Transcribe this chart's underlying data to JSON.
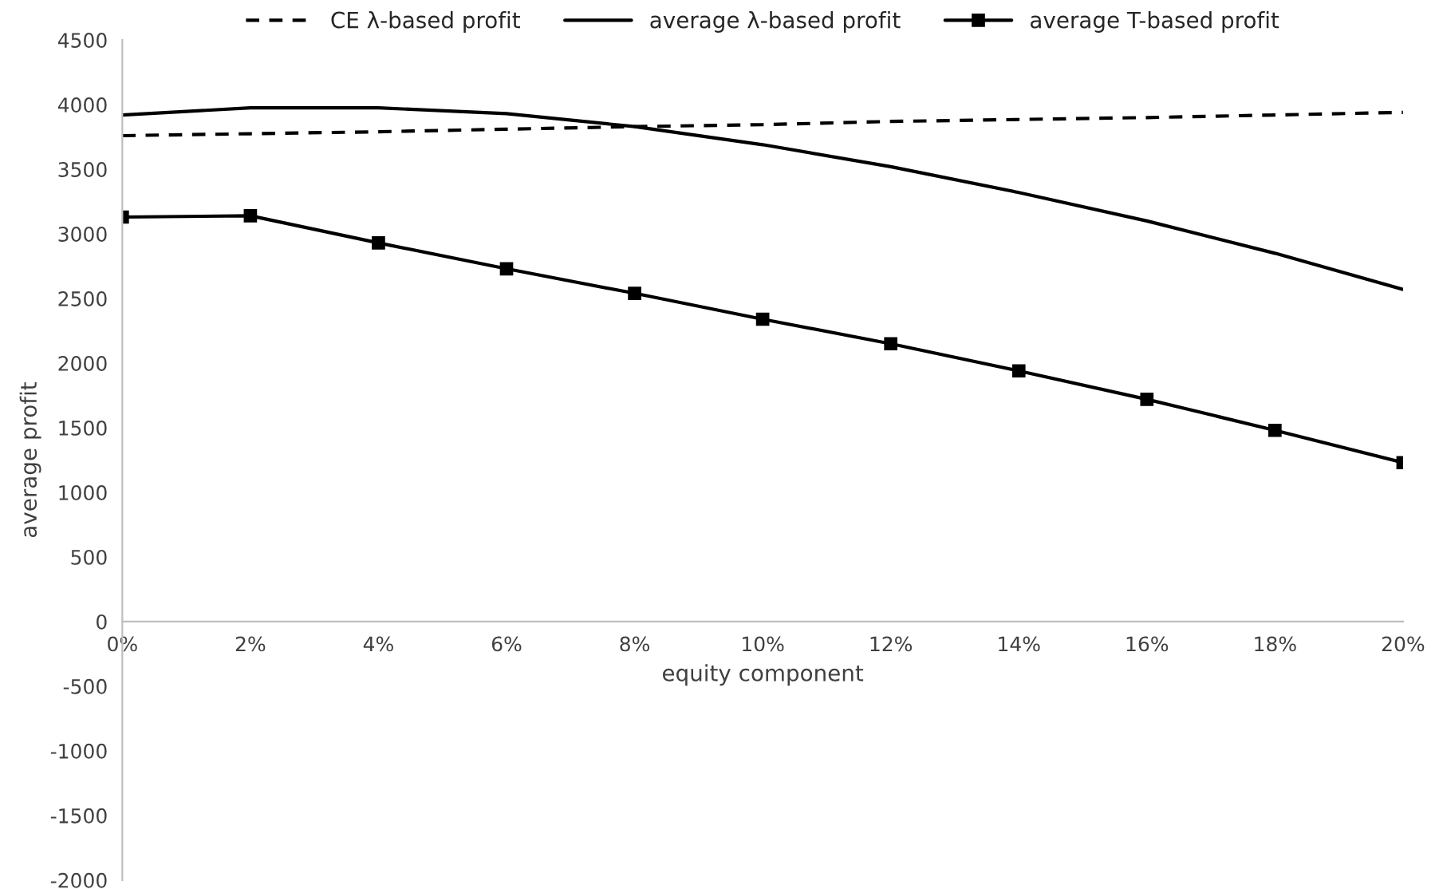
{
  "chart_data": {
    "type": "line",
    "xlabel": "equity component",
    "ylabel": "average profit",
    "categories": [
      "0%",
      "2%",
      "4%",
      "6%",
      "8%",
      "10%",
      "12%",
      "14%",
      "16%",
      "18%",
      "20%"
    ],
    "series": [
      {
        "name": "CE λ-based profit",
        "color": "#000000",
        "line_style": "dashed",
        "marker": "none",
        "values": [
          3760,
          3775,
          3790,
          3810,
          3830,
          3845,
          3870,
          3885,
          3900,
          3920,
          3940
        ]
      },
      {
        "name": "average λ-based profit",
        "color": "#000000",
        "line_style": "solid",
        "marker": "none",
        "values": [
          3920,
          3975,
          3975,
          3930,
          3830,
          3690,
          3520,
          3320,
          3100,
          2850,
          2570
        ]
      },
      {
        "name": "average T-based profit",
        "color": "#000000",
        "line_style": "solid",
        "marker": "square",
        "values": [
          3130,
          3140,
          2930,
          2730,
          2540,
          2340,
          2150,
          1940,
          1720,
          1480,
          1230
        ]
      }
    ],
    "ylim": [
      -2000,
      4500
    ],
    "yticks": [
      -2000,
      -1500,
      -1000,
      -500,
      0,
      500,
      1000,
      1500,
      2000,
      2500,
      3000,
      3500,
      4000,
      4500
    ],
    "grid": false,
    "legend": "top"
  }
}
